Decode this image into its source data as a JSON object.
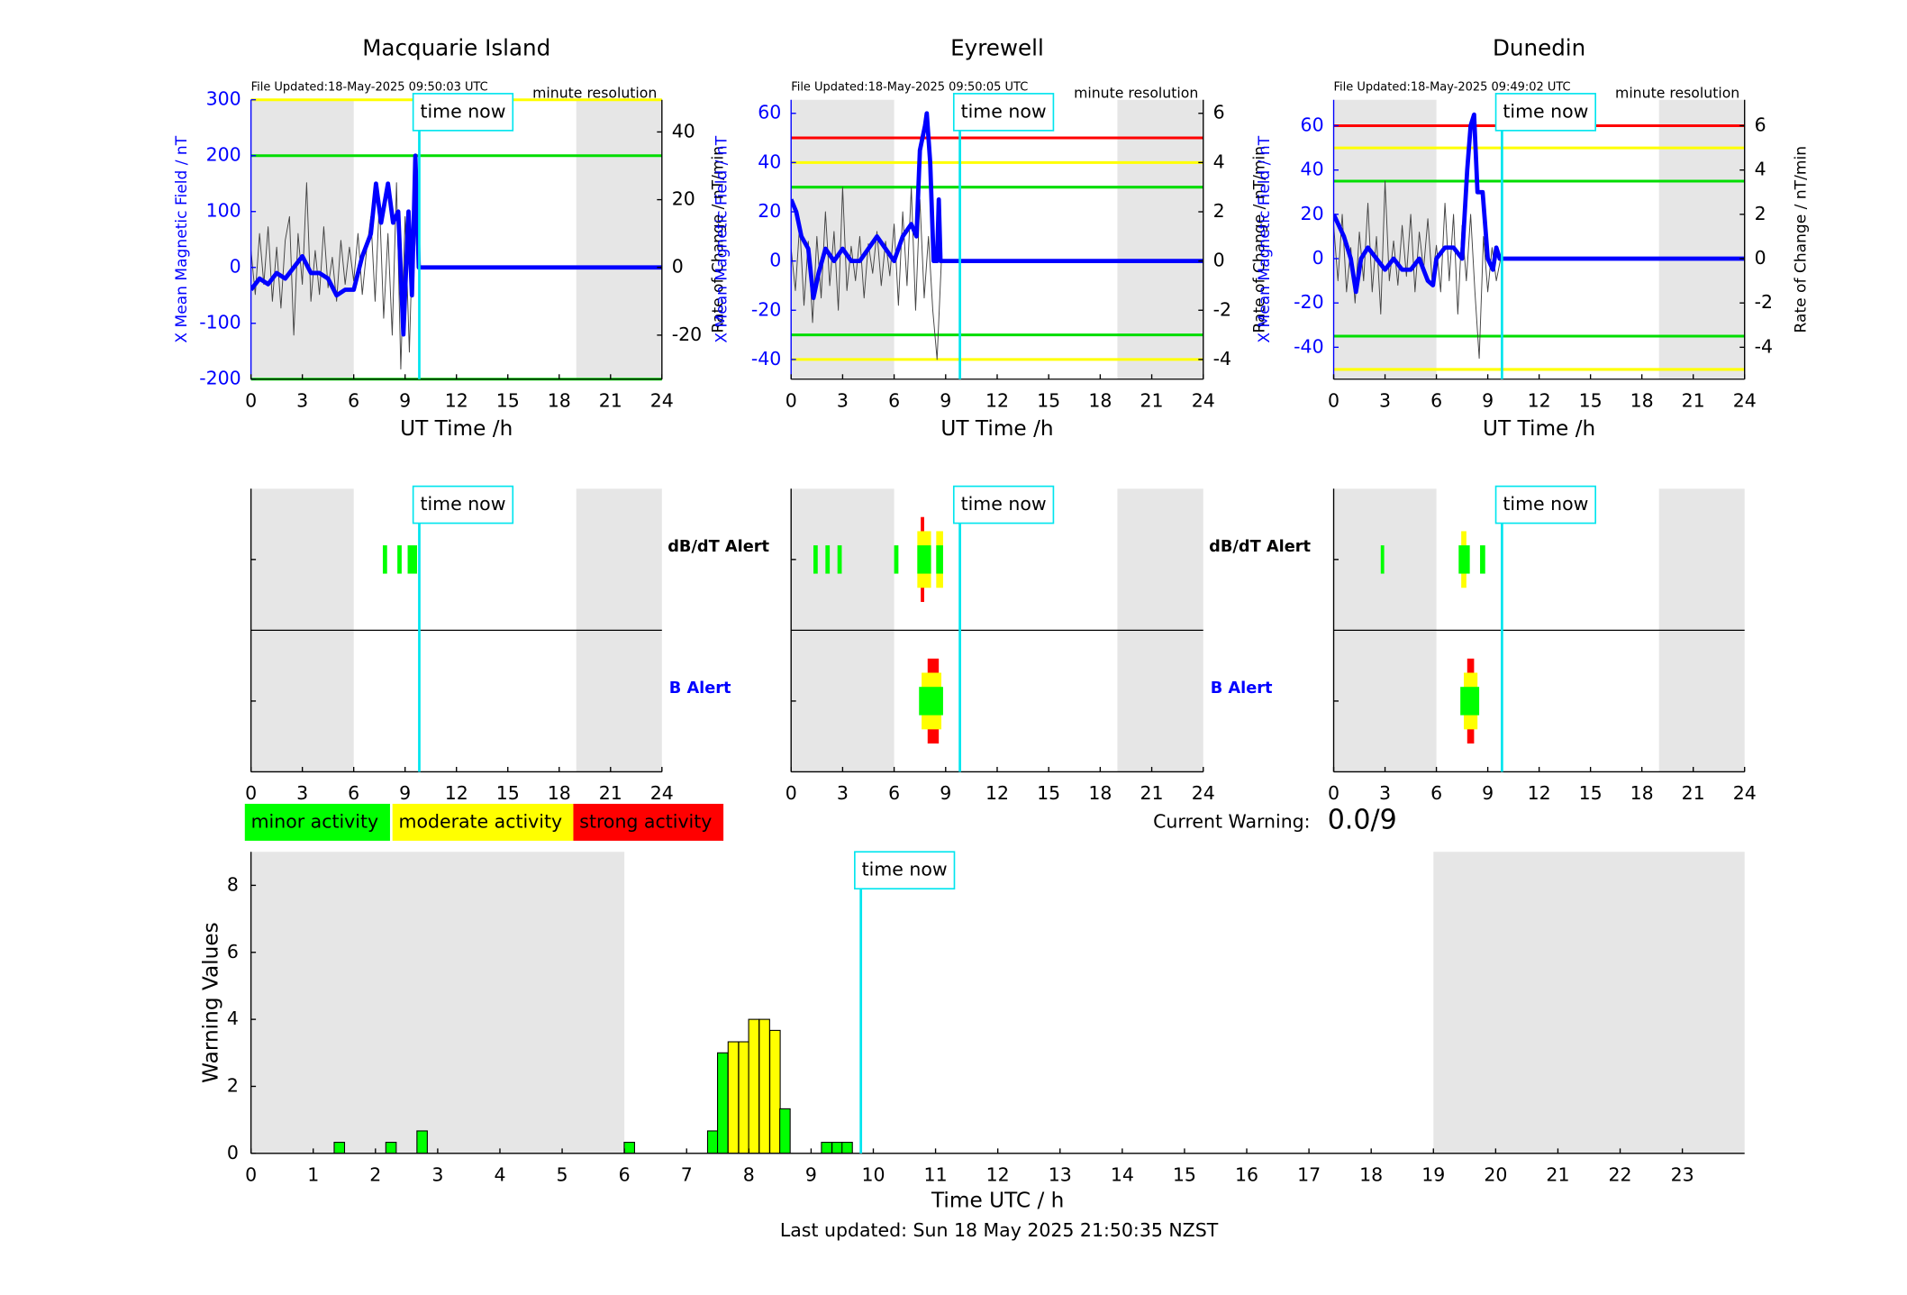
{
  "chart_data": [
    {
      "type": "line",
      "title": "Macquarie Island",
      "file_updated": "File Updated:18-May-2025 09:50:03 UTC",
      "resolution": "minute resolution",
      "xlabel": "UT Time /h",
      "ylabel": "X Mean Magnetic Field / nT",
      "y2label": "Rate of Change / nT/min",
      "xlim": [
        0,
        24
      ],
      "xticks": [
        0,
        3,
        6,
        9,
        12,
        15,
        18,
        21,
        24
      ],
      "ylim": [
        -200,
        300
      ],
      "yticks": [
        -200,
        -100,
        0,
        100,
        200,
        300
      ],
      "y2lim": [
        -33,
        49.5
      ],
      "y2ticks": [
        -20,
        0,
        20,
        40
      ],
      "shaded": [
        [
          0,
          6
        ],
        [
          19,
          24
        ]
      ],
      "time_now": 9.83,
      "time_now_label": "time now",
      "thresholds": [
        {
          "value": 300,
          "color": "#ffff00"
        },
        {
          "value": 200,
          "color": "#00dd00"
        },
        {
          "value": -200,
          "color": "#00dd00"
        }
      ],
      "series": [
        {
          "color": "#0000ff",
          "x": [
            0,
            0.5,
            1,
            1.5,
            2,
            2.5,
            3,
            3.5,
            4,
            4.5,
            5,
            5.5,
            6,
            6.5,
            7,
            7.3,
            7.6,
            8,
            8.3,
            8.6,
            8.9,
            9.2,
            9.4,
            9.6,
            9.8,
            24
          ],
          "values": [
            -40,
            -20,
            -30,
            -10,
            -20,
            0,
            20,
            -10,
            -10,
            -20,
            -50,
            -40,
            -40,
            20,
            60,
            150,
            80,
            150,
            80,
            100,
            -120,
            100,
            -50,
            200,
            0,
            0
          ]
        },
        {
          "color": "#444444",
          "axis": "y2",
          "x": [
            0,
            0.25,
            0.5,
            0.75,
            1,
            1.25,
            1.5,
            1.75,
            2,
            2.25,
            2.5,
            2.75,
            3,
            3.25,
            3.5,
            3.75,
            4,
            4.25,
            4.5,
            4.75,
            5,
            5.25,
            5.5,
            5.75,
            6,
            6.25,
            6.5,
            6.75,
            7,
            7.25,
            7.5,
            7.75,
            8,
            8.25,
            8.5,
            8.75,
            9,
            9.25,
            9.5,
            9.75
          ],
          "values": [
            5,
            -8,
            10,
            -5,
            12,
            -10,
            6,
            -12,
            8,
            15,
            -20,
            10,
            -5,
            25,
            -10,
            5,
            -8,
            12,
            -6,
            3,
            -10,
            8,
            -5,
            6,
            -4,
            10,
            -8,
            5,
            15,
            -10,
            20,
            -15,
            10,
            -20,
            25,
            -30,
            15,
            -25,
            20,
            0
          ]
        }
      ]
    },
    {
      "type": "line",
      "title": "Eyrewell",
      "file_updated": "File Updated:18-May-2025 09:50:05 UTC",
      "resolution": "minute resolution",
      "xlabel": "UT Time /h",
      "ylabel": "X Mean Magnetic Field / nT",
      "y2label": "Rate of Change / nT/min",
      "xlim": [
        0,
        24
      ],
      "xticks": [
        0,
        3,
        6,
        9,
        12,
        15,
        18,
        21,
        24
      ],
      "ylim": [
        -48,
        65.5
      ],
      "yticks": [
        -40,
        -20,
        0,
        20,
        40,
        60
      ],
      "y2lim": [
        -4.8,
        6.55
      ],
      "y2ticks": [
        -4,
        -2,
        0,
        2,
        4,
        6
      ],
      "shaded": [
        [
          0,
          6
        ],
        [
          19,
          24
        ]
      ],
      "time_now": 9.83,
      "time_now_label": "time now",
      "thresholds": [
        {
          "value": 50,
          "color": "#ff0000"
        },
        {
          "value": 40,
          "color": "#ffff00"
        },
        {
          "value": 30,
          "color": "#00dd00"
        },
        {
          "value": -30,
          "color": "#00dd00"
        },
        {
          "value": -40,
          "color": "#ffff00"
        }
      ],
      "series": [
        {
          "color": "#0000ff",
          "x": [
            0,
            0.3,
            0.6,
            1,
            1.3,
            1.6,
            2,
            2.5,
            3,
            3.5,
            4,
            4.5,
            5,
            5.5,
            6,
            6.5,
            7,
            7.3,
            7.5,
            7.8,
            7.9,
            8.1,
            8.3,
            8.5,
            8.6,
            8.7,
            24
          ],
          "values": [
            25,
            20,
            10,
            5,
            -15,
            -5,
            5,
            0,
            5,
            0,
            0,
            5,
            10,
            5,
            0,
            10,
            15,
            10,
            45,
            55,
            60,
            40,
            0,
            0,
            25,
            0,
            0
          ]
        },
        {
          "color": "#444444",
          "axis": "y2",
          "x": [
            0,
            0.25,
            0.5,
            0.75,
            1,
            1.25,
            1.5,
            1.75,
            2,
            2.25,
            2.5,
            2.75,
            3,
            3.25,
            3.5,
            3.75,
            4,
            4.25,
            4.5,
            4.75,
            5,
            5.25,
            5.5,
            5.75,
            6,
            6.25,
            6.5,
            6.75,
            7,
            7.25,
            7.5,
            7.75,
            8,
            8.25,
            8.5,
            8.75
          ],
          "values": [
            0.5,
            -1.2,
            1.5,
            -1.8,
            0.8,
            -2.5,
            1,
            -1.5,
            2,
            -1,
            1.2,
            -2,
            3,
            -1.2,
            0.6,
            -0.8,
            1,
            -1.5,
            0.7,
            -0.5,
            1.2,
            -1,
            0.8,
            -0.6,
            1.5,
            -1.8,
            2,
            -1,
            3,
            -2,
            2.5,
            -1.5,
            1,
            -2,
            -4,
            0
          ]
        }
      ]
    },
    {
      "type": "line",
      "title": "Dunedin",
      "file_updated": "File Updated:18-May-2025 09:49:02 UTC",
      "resolution": "minute resolution",
      "xlabel": "UT Time /h",
      "ylabel": "X Mean Magnetic Field / nT",
      "y2label": "Rate of Change / nT/min",
      "xlim": [
        0,
        24
      ],
      "xticks": [
        0,
        3,
        6,
        9,
        12,
        15,
        18,
        21,
        24
      ],
      "ylim": [
        -54.4,
        71.7
      ],
      "yticks": [
        -40,
        -20,
        0,
        20,
        40,
        60
      ],
      "y2lim": [
        -5.44,
        7.17
      ],
      "y2ticks": [
        -4,
        -2,
        0,
        2,
        4,
        6
      ],
      "shaded": [
        [
          0,
          6
        ],
        [
          19,
          24
        ]
      ],
      "time_now": 9.83,
      "time_now_label": "time now",
      "thresholds": [
        {
          "value": 60,
          "color": "#ff0000"
        },
        {
          "value": 50,
          "color": "#ffff00"
        },
        {
          "value": 35,
          "color": "#00dd00"
        },
        {
          "value": -35,
          "color": "#00dd00"
        },
        {
          "value": -50,
          "color": "#ffff00"
        }
      ],
      "series": [
        {
          "color": "#0000ff",
          "x": [
            0,
            0.3,
            0.6,
            1,
            1.3,
            1.6,
            2,
            2.5,
            3,
            3.5,
            4,
            4.5,
            5,
            5.5,
            5.8,
            6,
            6.5,
            7,
            7.5,
            7.8,
            8,
            8.2,
            8.4,
            8.7,
            9,
            9.3,
            9.5,
            9.7,
            24
          ],
          "values": [
            20,
            15,
            10,
            0,
            -15,
            0,
            5,
            0,
            -5,
            0,
            -5,
            -5,
            0,
            -10,
            -12,
            0,
            5,
            5,
            0,
            40,
            60,
            65,
            30,
            30,
            0,
            -5,
            5,
            0,
            0
          ]
        },
        {
          "color": "#444444",
          "axis": "y2",
          "x": [
            0,
            0.25,
            0.5,
            0.75,
            1,
            1.25,
            1.5,
            1.75,
            2,
            2.25,
            2.5,
            2.75,
            3,
            3.25,
            3.5,
            3.75,
            4,
            4.25,
            4.5,
            4.75,
            5,
            5.25,
            5.5,
            5.75,
            6,
            6.25,
            6.5,
            6.75,
            7,
            7.25,
            7.5,
            7.75,
            8,
            8.25,
            8.5,
            8.75,
            9,
            9.25,
            9.5,
            9.75
          ],
          "values": [
            1.5,
            -1,
            2,
            -1.5,
            0.5,
            -2,
            1.2,
            -1,
            2.5,
            -1.5,
            1,
            -2.5,
            3.5,
            -1,
            0.8,
            -1.2,
            1.5,
            -0.8,
            2,
            -1.5,
            1.2,
            -0.5,
            1.8,
            -1,
            0.6,
            -1.5,
            2.5,
            -1,
            2,
            -2.5,
            1.5,
            -1,
            2,
            -1.5,
            -4.5,
            1,
            -1.5,
            0.5,
            -1,
            0
          ]
        }
      ]
    },
    {
      "type": "alert",
      "xlim": [
        0,
        24
      ],
      "xticks": [
        0,
        3,
        6,
        9,
        12,
        15,
        18,
        21,
        24
      ],
      "shaded": [
        [
          0,
          6
        ],
        [
          19,
          24
        ]
      ],
      "time_now": 9.83,
      "time_now_label": "time now",
      "dbdt_label": "dB/dT Alert",
      "b_label": "B Alert",
      "level_colors": [
        "#00ff00",
        "#ffff00",
        "#ff0000"
      ],
      "dbdt_alerts": [
        {
          "start": 7.7,
          "end": 7.95,
          "level": 1
        },
        {
          "start": 8.55,
          "end": 8.8,
          "level": 1
        },
        {
          "start": 9.15,
          "end": 9.7,
          "level": 1
        }
      ],
      "b_alerts": []
    },
    {
      "type": "alert",
      "xlim": [
        0,
        24
      ],
      "xticks": [
        0,
        3,
        6,
        9,
        12,
        15,
        18,
        21,
        24
      ],
      "shaded": [
        [
          0,
          6
        ],
        [
          19,
          24
        ]
      ],
      "time_now": 9.83,
      "time_now_label": "time now",
      "dbdt_label": "dB/dT Alert",
      "b_label": "B Alert",
      "level_colors": [
        "#00ff00",
        "#ffff00",
        "#ff0000"
      ],
      "dbdt_alerts": [
        {
          "start": 7.55,
          "end": 7.75,
          "level": 3
        },
        {
          "start": 7.35,
          "end": 8.15,
          "level": 2
        },
        {
          "start": 8.45,
          "end": 8.85,
          "level": 2
        },
        {
          "start": 1.3,
          "end": 1.55,
          "level": 1
        },
        {
          "start": 2.0,
          "end": 2.25,
          "level": 1
        },
        {
          "start": 2.7,
          "end": 2.95,
          "level": 1
        },
        {
          "start": 6.0,
          "end": 6.25,
          "level": 1
        },
        {
          "start": 7.35,
          "end": 8.15,
          "level": 1
        },
        {
          "start": 8.45,
          "end": 8.85,
          "level": 1
        }
      ],
      "b_alerts": [
        {
          "start": 7.95,
          "end": 8.6,
          "level": 3
        },
        {
          "start": 7.6,
          "end": 8.75,
          "level": 2
        },
        {
          "start": 7.45,
          "end": 8.85,
          "level": 1
        }
      ]
    },
    {
      "type": "alert",
      "xlim": [
        0,
        24
      ],
      "xticks": [
        0,
        3,
        6,
        9,
        12,
        15,
        18,
        21,
        24
      ],
      "shaded": [
        [
          0,
          6
        ],
        [
          19,
          24
        ]
      ],
      "time_now": 9.83,
      "time_now_label": "time now",
      "level_colors": [
        "#00ff00",
        "#ffff00",
        "#ff0000"
      ],
      "dbdt_alerts": [
        {
          "start": 7.45,
          "end": 7.75,
          "level": 2
        },
        {
          "start": 7.3,
          "end": 7.95,
          "level": 1
        },
        {
          "start": 8.55,
          "end": 8.85,
          "level": 1
        },
        {
          "start": 2.75,
          "end": 2.95,
          "level": 1
        }
      ],
      "b_alerts": [
        {
          "start": 7.8,
          "end": 8.2,
          "level": 3
        },
        {
          "start": 7.6,
          "end": 8.4,
          "level": 2
        },
        {
          "start": 7.4,
          "end": 8.5,
          "level": 1
        }
      ]
    },
    {
      "type": "bar",
      "xlabel": "Time UTC / h",
      "ylabel": "Warning Values",
      "xlim": [
        0,
        24
      ],
      "xticks": [
        0,
        1,
        2,
        3,
        4,
        5,
        6,
        7,
        8,
        9,
        10,
        11,
        12,
        13,
        14,
        15,
        16,
        17,
        18,
        19,
        20,
        21,
        22,
        23
      ],
      "ylim": [
        0,
        9
      ],
      "yticks": [
        0,
        2,
        4,
        6,
        8
      ],
      "shaded": [
        [
          0,
          6
        ],
        [
          19,
          24
        ]
      ],
      "time_now": 9.8,
      "time_now_label": "time now",
      "bar_width": 0.1667,
      "x": [
        1.42,
        2.25,
        2.75,
        6.08,
        7.42,
        7.58,
        7.75,
        7.92,
        8.08,
        8.25,
        8.42,
        8.58,
        9.25,
        9.42,
        9.58
      ],
      "values": [
        0.33,
        0.33,
        0.67,
        0.33,
        0.67,
        3,
        3.33,
        3.33,
        4,
        4,
        3.67,
        1.33,
        0.33,
        0.33,
        0.33
      ],
      "colors": [
        "#00ff00",
        "#00ff00",
        "#00ff00",
        "#00ff00",
        "#00ff00",
        "#00ff00",
        "#ffff00",
        "#ffff00",
        "#ffff00",
        "#ffff00",
        "#ffff00",
        "#00ff00",
        "#00ff00",
        "#00ff00",
        "#00ff00"
      ],
      "legend": [
        {
          "label": "minor activity",
          "color": "#00ff00"
        },
        {
          "label": "moderate activity",
          "color": "#ffff00"
        },
        {
          "label": "strong activity",
          "color": "#ff0000"
        }
      ],
      "current_warning_label": "Current Warning:",
      "current_warning": "0.0/9",
      "footer": "Last updated: Sun 18 May 2025 21:50:35 NZST"
    }
  ]
}
